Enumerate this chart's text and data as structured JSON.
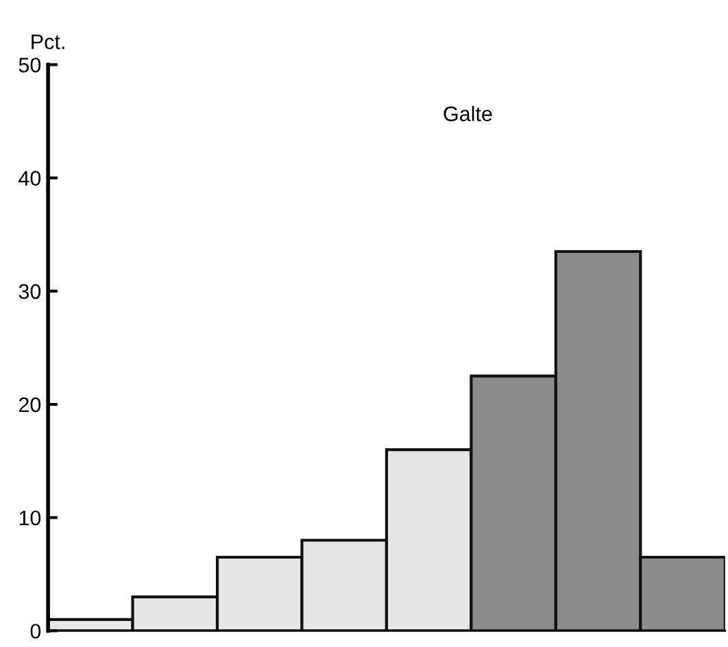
{
  "chart_data": {
    "type": "bar",
    "title": "Galte",
    "ylabel": "Pct.",
    "categories": [
      null,
      null,
      null,
      null,
      null,
      null,
      null,
      null
    ],
    "values": [
      1,
      3,
      6.5,
      8,
      16,
      22.5,
      33.5,
      6.5
    ],
    "colors": [
      "#e6e6e6",
      "#e6e6e6",
      "#e6e6e6",
      "#e6e6e6",
      "#e6e6e6",
      "#8c8c8c",
      "#8c8c8c",
      "#8c8c8c"
    ],
    "ylim": [
      0,
      50
    ],
    "yticks": [
      0,
      10,
      20,
      30,
      40,
      50
    ],
    "grid": false,
    "legend": false
  }
}
